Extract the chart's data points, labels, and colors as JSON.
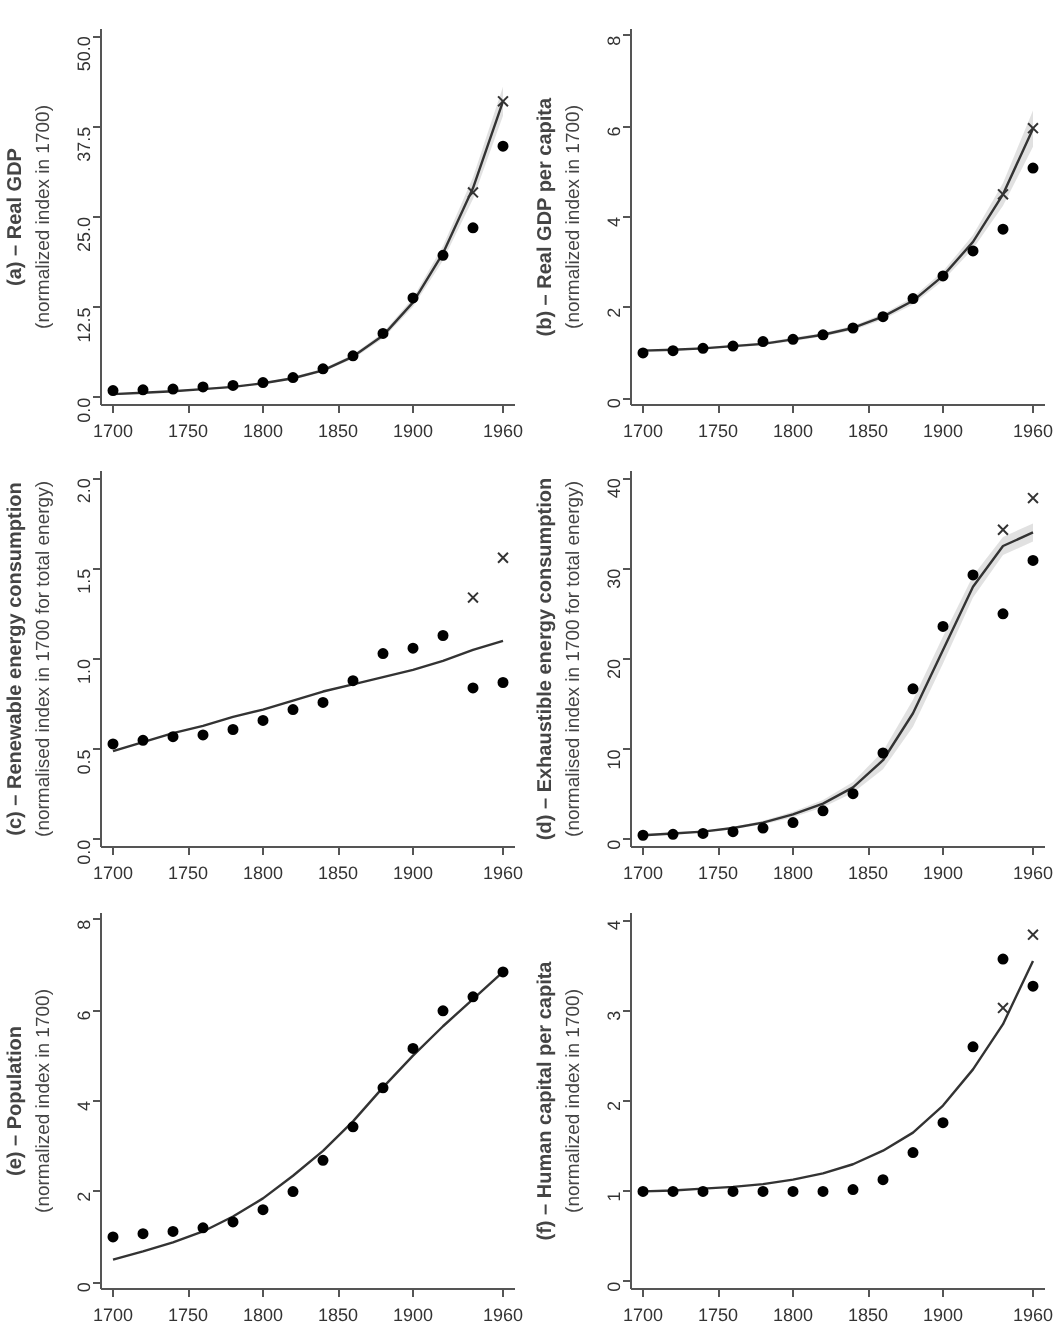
{
  "chart_data": [
    {
      "type": "line",
      "title": "(a) – Real GDP",
      "ylabel": "(normalized index in 1700)",
      "x": [
        1700,
        1720,
        1740,
        1760,
        1780,
        1800,
        1820,
        1840,
        1860,
        1880,
        1900,
        1920,
        1940,
        1960
      ],
      "xlim": [
        1692,
        1968
      ],
      "xticks": [
        1700,
        1750,
        1800,
        1850,
        1900,
        1960
      ],
      "ylim": [
        -1,
        51
      ],
      "yticks": [
        {
          "value": 0,
          "label": "0.0"
        },
        12.5,
        {
          "value": 25,
          "label": "25.0"
        },
        37.5,
        {
          "value": 50,
          "label": "50.0"
        }
      ],
      "grid": false,
      "series": [
        {
          "color": "#333333",
          "values": [
            0.5,
            0.7,
            0.9,
            1.2,
            1.5,
            2.0,
            2.7,
            3.8,
            5.7,
            8.6,
            13.2,
            20.0,
            29.0,
            41.0
          ],
          "lower": [
            0.4,
            0.6,
            0.8,
            1.1,
            1.4,
            1.9,
            2.5,
            3.6,
            5.4,
            8.2,
            12.6,
            19.0,
            27.5,
            39.0
          ],
          "upper": [
            0.6,
            0.8,
            1.0,
            1.3,
            1.6,
            2.1,
            2.9,
            4.0,
            6.0,
            9.0,
            13.8,
            21.0,
            30.5,
            43.0
          ]
        },
        {
          "type": "scatter",
          "marker": "circle",
          "color": "#000000",
          "values": [
            1.0,
            1.1,
            1.2,
            1.5,
            1.7,
            2.1,
            2.8,
            4.0,
            5.8,
            8.9,
            13.8,
            19.7,
            23.5,
            34.8
          ]
        },
        {
          "type": "scatter",
          "marker": "cross",
          "color": "#333333",
          "values": [
            null,
            null,
            null,
            null,
            null,
            null,
            null,
            null,
            null,
            null,
            null,
            null,
            28.4,
            41.0
          ]
        }
      ]
    },
    {
      "type": "line",
      "title": "(b) – Real GDP per capita",
      "ylabel": "(normalized index in 1700)",
      "x": [
        1700,
        1720,
        1740,
        1760,
        1780,
        1800,
        1820,
        1840,
        1860,
        1880,
        1900,
        1920,
        1940,
        1960
      ],
      "xlim": [
        1692,
        1968
      ],
      "xticks": [
        1700,
        1750,
        1800,
        1850,
        1900,
        1960
      ],
      "ylim": [
        -0.15,
        8.15
      ],
      "yticks": [
        0,
        2,
        4,
        6,
        8
      ],
      "grid": false,
      "series": [
        {
          "color": "#333333",
          "values": [
            1.05,
            1.07,
            1.1,
            1.15,
            1.2,
            1.3,
            1.4,
            1.55,
            1.8,
            2.15,
            2.7,
            3.45,
            4.5,
            5.95
          ],
          "lower": [
            1.03,
            1.05,
            1.08,
            1.12,
            1.17,
            1.26,
            1.36,
            1.5,
            1.74,
            2.07,
            2.6,
            3.3,
            4.25,
            5.55
          ],
          "upper": [
            1.07,
            1.09,
            1.12,
            1.18,
            1.23,
            1.34,
            1.44,
            1.6,
            1.86,
            2.23,
            2.8,
            3.6,
            4.75,
            6.35
          ]
        },
        {
          "type": "scatter",
          "marker": "circle",
          "color": "#000000",
          "values": [
            1.0,
            1.05,
            1.1,
            1.15,
            1.25,
            1.3,
            1.4,
            1.55,
            1.8,
            2.2,
            2.7,
            3.25,
            3.73,
            5.08
          ]
        },
        {
          "type": "scatter",
          "marker": "cross",
          "color": "#333333",
          "values": [
            null,
            null,
            null,
            null,
            null,
            null,
            null,
            null,
            null,
            null,
            null,
            null,
            4.5,
            5.96
          ]
        }
      ]
    },
    {
      "type": "line",
      "title": "(c) – Renewable energy consumption",
      "ylabel": "(normalised index in 1700 for total energy)",
      "x": [
        1700,
        1720,
        1740,
        1760,
        1780,
        1800,
        1820,
        1840,
        1860,
        1880,
        1900,
        1920,
        1940,
        1960
      ],
      "xlim": [
        1692,
        1968
      ],
      "xticks": [
        1700,
        1750,
        1800,
        1850,
        1900,
        1960
      ],
      "ylim": [
        -0.04,
        2.04
      ],
      "yticks": [
        {
          "value": 0,
          "label": "0.0"
        },
        0.5,
        {
          "value": 1,
          "label": "1.0"
        },
        1.5,
        {
          "value": 2,
          "label": "2.0"
        }
      ],
      "grid": false,
      "series": [
        {
          "color": "#333333",
          "values": [
            0.49,
            0.54,
            0.59,
            0.63,
            0.68,
            0.72,
            0.77,
            0.82,
            0.86,
            0.9,
            0.94,
            0.99,
            1.05,
            1.1
          ]
        },
        {
          "type": "scatter",
          "marker": "circle",
          "color": "#000000",
          "values": [
            0.53,
            0.55,
            0.57,
            0.58,
            0.61,
            0.66,
            0.72,
            0.76,
            0.88,
            1.03,
            1.06,
            1.13,
            0.84,
            0.87
          ]
        },
        {
          "type": "scatter",
          "marker": "cross",
          "color": "#333333",
          "values": [
            null,
            null,
            null,
            null,
            null,
            null,
            null,
            null,
            null,
            null,
            null,
            null,
            1.34,
            1.56
          ]
        }
      ]
    },
    {
      "type": "line",
      "title": "(d) – Exhaustible energy consumption",
      "ylabel": "(normalised index in 1700 for total energy)",
      "x": [
        1700,
        1720,
        1740,
        1760,
        1780,
        1800,
        1820,
        1840,
        1860,
        1880,
        1900,
        1920,
        1940,
        1960
      ],
      "xlim": [
        1692,
        1968
      ],
      "xticks": [
        1700,
        1750,
        1800,
        1850,
        1900,
        1960
      ],
      "ylim": [
        -0.8,
        40.8
      ],
      "yticks": [
        0,
        10,
        20,
        30,
        40
      ],
      "grid": false,
      "series": [
        {
          "color": "#333333",
          "values": [
            0.5,
            0.7,
            0.9,
            1.3,
            1.9,
            2.8,
            4.0,
            5.8,
            8.8,
            14.0,
            21.0,
            28.0,
            32.5,
            34.0
          ],
          "lower": [
            0.4,
            0.6,
            0.8,
            1.2,
            1.7,
            2.5,
            3.6,
            5.2,
            7.8,
            12.5,
            19.5,
            26.8,
            31.5,
            33.0
          ],
          "upper": [
            0.6,
            0.8,
            1.0,
            1.4,
            2.1,
            3.1,
            4.4,
            6.4,
            9.8,
            15.5,
            22.5,
            29.2,
            33.5,
            35.0
          ]
        },
        {
          "type": "scatter",
          "marker": "circle",
          "color": "#000000",
          "values": [
            0.5,
            0.6,
            0.7,
            0.9,
            1.3,
            1.9,
            3.2,
            5.1,
            9.6,
            16.7,
            23.6,
            29.3,
            25.0,
            30.9
          ]
        },
        {
          "type": "scatter",
          "marker": "cross",
          "color": "#333333",
          "values": [
            null,
            null,
            null,
            null,
            null,
            null,
            null,
            null,
            null,
            null,
            null,
            null,
            34.3,
            37.8
          ]
        }
      ]
    },
    {
      "type": "line",
      "title": "(e) – Population",
      "ylabel": "(normalized index in 1700)",
      "x": [
        1700,
        1720,
        1740,
        1760,
        1780,
        1800,
        1820,
        1840,
        1860,
        1880,
        1900,
        1920,
        1940,
        1960
      ],
      "xlim": [
        1692,
        1968
      ],
      "xticks": [
        1700,
        1750,
        1800,
        1850,
        1900,
        1960
      ],
      "ylim": [
        -0.15,
        8.15
      ],
      "yticks": [
        0,
        2,
        4,
        6,
        8
      ],
      "grid": false,
      "series": [
        {
          "color": "#333333",
          "values": [
            0.5,
            0.68,
            0.88,
            1.12,
            1.45,
            1.85,
            2.35,
            2.9,
            3.55,
            4.3,
            5.0,
            5.65,
            6.25,
            6.85
          ]
        },
        {
          "type": "scatter",
          "marker": "circle",
          "color": "#000000",
          "values": [
            1.0,
            1.07,
            1.12,
            1.2,
            1.33,
            1.6,
            2.0,
            2.69,
            3.43,
            4.29,
            5.16,
            5.99,
            6.3,
            6.85
          ]
        }
      ]
    },
    {
      "type": "line",
      "title": "(f) – Human capital per capita",
      "ylabel": "(normalized index in 1700)",
      "x": [
        1700,
        1720,
        1740,
        1760,
        1780,
        1800,
        1820,
        1840,
        1860,
        1880,
        1900,
        1920,
        1940,
        1960
      ],
      "xlim": [
        1692,
        1968
      ],
      "xticks": [
        1700,
        1750,
        1800,
        1850,
        1900,
        1960
      ],
      "ylim": [
        -0.08,
        4.08
      ],
      "yticks": [
        0,
        1,
        2,
        3,
        4
      ],
      "grid": false,
      "series": [
        {
          "color": "#333333",
          "values": [
            1.0,
            1.01,
            1.03,
            1.05,
            1.08,
            1.13,
            1.2,
            1.3,
            1.45,
            1.65,
            1.95,
            2.35,
            2.85,
            3.55
          ]
        },
        {
          "type": "scatter",
          "marker": "circle",
          "color": "#000000",
          "values": [
            1.0,
            1.0,
            1.0,
            1.0,
            1.0,
            1.0,
            1.0,
            1.02,
            1.13,
            1.43,
            1.76,
            2.6,
            3.57,
            3.27
          ]
        },
        {
          "type": "scatter",
          "marker": "cross",
          "color": "#333333",
          "values": [
            null,
            null,
            null,
            null,
            null,
            null,
            null,
            null,
            null,
            null,
            null,
            null,
            3.03,
            3.84
          ]
        }
      ]
    }
  ]
}
